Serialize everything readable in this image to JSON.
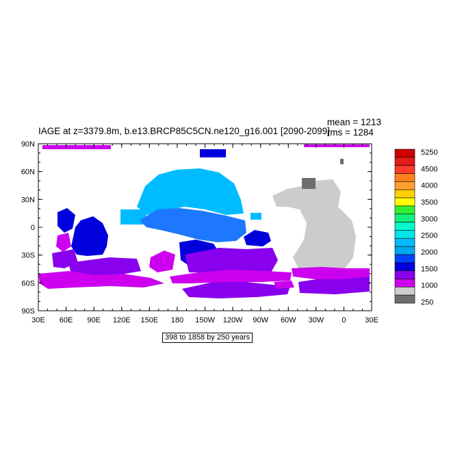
{
  "title": "IAGE at z=3379.8m, b.e13.BRCP85C5CN.ne120_g16.001 [2090-2099]",
  "stats": {
    "mean": "mean = 1213",
    "rms": "rms = 1284"
  },
  "info_box": "398 to 1858 by 250 years",
  "map": {
    "lat_labels": [
      "90N",
      "60N",
      "30N",
      "0",
      "30S",
      "60S",
      "90S"
    ],
    "lon_labels": [
      "30E",
      "60E",
      "90E",
      "120E",
      "150E",
      "180",
      "150W",
      "120W",
      "90W",
      "60W",
      "30W",
      "0",
      "30E"
    ]
  },
  "labelbar": {
    "labels": [
      "5250",
      "4500",
      "4000",
      "3500",
      "3000",
      "2500",
      "2000",
      "1500",
      "1000",
      "250"
    ],
    "colors": [
      "#cc0000",
      "#e21b1b",
      "#ff3a2a",
      "#ff7f1a",
      "#ffa032",
      "#ffd000",
      "#ffff00",
      "#33ee33",
      "#11f07a",
      "#00ffcc",
      "#00e5e8",
      "#00bbff",
      "#00a8ee",
      "#0044ff",
      "#0000dd",
      "#8800ee",
      "#cc00ee",
      "#cccccc",
      "#6e6e6e"
    ]
  },
  "colors": {
    "gray_dark": "#6e6e6e",
    "gray_light": "#cccccc",
    "magenta": "#cc00ee",
    "purple": "#8800ee",
    "blue_dark": "#0000dd",
    "blue": "#0044ff",
    "blue_mid": "#1e78ff",
    "sky": "#00bbff"
  }
}
